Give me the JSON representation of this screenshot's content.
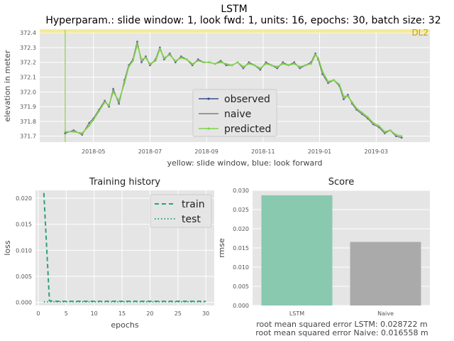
{
  "figure": {
    "title": "LSTM",
    "subtitle": "Hyperparam.: slide window: 1, look fwd: 1, units: 16, epochs: 30, batch size: 32"
  },
  "colors": {
    "panel_bg": "#e5e5e5",
    "grid": "#ffffff",
    "observed": "#3b4d8f",
    "naive": "#7f7f7f",
    "predicted": "#7ed348",
    "highlight": "#f5ec8a",
    "highlight_label": "#c8a000",
    "window_line": "#9fd36b",
    "train": "#2ca07a",
    "test": "#2ca07a",
    "bar_lstm": "#88c9b0",
    "bar_naive": "#aaaaaa"
  },
  "chart_data": [
    {
      "type": "line",
      "title": "",
      "xlabel": "yellow: slide window, blue: look forward",
      "ylabel": "elevation in meter",
      "x_ticks": [
        "2018-05",
        "2018-07",
        "2018-09",
        "2018-11",
        "2019-01",
        "2019-03"
      ],
      "x_tick_pos": [
        1.0,
        3.0,
        5.0,
        7.0,
        9.0,
        11.0
      ],
      "y_ticks": [
        "371.7",
        "371.8",
        "371.9",
        "372.0",
        "372.1",
        "372.2",
        "372.3",
        "372.4"
      ],
      "ylim": [
        371.66,
        372.42
      ],
      "xlim": [
        -0.9,
        12.9
      ],
      "annotation": "DL2",
      "highlight_y": 372.41,
      "window_x": 0.0,
      "legend": {
        "position": "center-right",
        "entries": [
          "observed",
          "naive",
          "predicted"
        ]
      },
      "x": [
        0.0,
        0.3,
        0.6,
        0.85,
        1.0,
        1.2,
        1.4,
        1.55,
        1.7,
        1.9,
        2.1,
        2.25,
        2.4,
        2.55,
        2.7,
        2.85,
        3.0,
        3.2,
        3.35,
        3.5,
        3.7,
        3.9,
        4.1,
        4.3,
        4.5,
        4.7,
        4.9,
        5.1,
        5.3,
        5.5,
        5.7,
        5.9,
        6.1,
        6.3,
        6.5,
        6.7,
        6.9,
        7.1,
        7.3,
        7.5,
        7.7,
        7.9,
        8.1,
        8.3,
        8.5,
        8.7,
        8.85,
        8.95,
        9.1,
        9.3,
        9.5,
        9.7,
        9.85,
        10.0,
        10.15,
        10.3,
        10.5,
        10.7,
        10.9,
        11.1,
        11.3,
        11.5,
        11.7,
        11.9
      ],
      "series": [
        {
          "name": "observed",
          "values": [
            371.72,
            371.74,
            371.71,
            371.79,
            371.82,
            371.88,
            371.94,
            371.9,
            372.02,
            371.92,
            372.08,
            372.18,
            372.22,
            372.34,
            372.2,
            372.24,
            372.18,
            372.22,
            372.3,
            372.22,
            372.26,
            372.2,
            372.24,
            372.22,
            372.18,
            372.22,
            372.2,
            372.2,
            372.19,
            372.21,
            372.18,
            372.18,
            372.2,
            372.16,
            372.2,
            372.18,
            372.15,
            372.2,
            372.18,
            372.16,
            372.2,
            372.18,
            372.2,
            372.16,
            372.18,
            372.2,
            372.26,
            372.22,
            372.12,
            372.06,
            372.08,
            372.04,
            371.95,
            371.98,
            371.92,
            371.88,
            371.85,
            371.82,
            371.78,
            371.76,
            371.72,
            371.74,
            371.7,
            371.69
          ]
        },
        {
          "name": "naive",
          "values": [
            371.72,
            371.74,
            371.71,
            371.79,
            371.82,
            371.88,
            371.94,
            371.9,
            372.02,
            371.92,
            372.08,
            372.18,
            372.22,
            372.34,
            372.2,
            372.24,
            372.18,
            372.22,
            372.3,
            372.22,
            372.26,
            372.2,
            372.24,
            372.22,
            372.18,
            372.22,
            372.2,
            372.2,
            372.19,
            372.21,
            372.18,
            372.18,
            372.2,
            372.16,
            372.2,
            372.18,
            372.15,
            372.2,
            372.18,
            372.16,
            372.2,
            372.18,
            372.2,
            372.16,
            372.18,
            372.2,
            372.26,
            372.22,
            372.12,
            372.06,
            372.08,
            372.04,
            371.95,
            371.98,
            371.92,
            371.88,
            371.85,
            371.82,
            371.78,
            371.76,
            371.72,
            371.74,
            371.7,
            371.69
          ]
        },
        {
          "name": "predicted",
          "values": [
            371.73,
            371.73,
            371.72,
            371.77,
            371.81,
            371.87,
            371.93,
            371.91,
            372.0,
            371.94,
            372.06,
            372.17,
            372.21,
            372.32,
            372.22,
            372.23,
            372.19,
            372.21,
            372.29,
            372.23,
            372.25,
            372.21,
            372.23,
            372.22,
            372.19,
            372.21,
            372.2,
            372.2,
            372.19,
            372.2,
            372.19,
            372.18,
            372.2,
            372.17,
            372.19,
            372.18,
            372.16,
            372.19,
            372.18,
            372.17,
            372.19,
            372.18,
            372.19,
            372.17,
            372.18,
            372.19,
            372.25,
            372.23,
            372.14,
            372.07,
            372.08,
            372.05,
            371.97,
            371.97,
            371.93,
            371.89,
            371.86,
            371.83,
            371.79,
            371.77,
            371.73,
            371.74,
            371.71,
            371.7
          ]
        }
      ]
    },
    {
      "type": "line",
      "title": "Training history",
      "xlabel": "epochs",
      "ylabel": "loss",
      "x_ticks": [
        "0",
        "5",
        "10",
        "15",
        "20",
        "25",
        "30"
      ],
      "y_ticks": [
        "0.000",
        "0.005",
        "0.010",
        "0.015",
        "0.020"
      ],
      "xlim": [
        -0.5,
        31.5
      ],
      "ylim": [
        -0.0006,
        0.0215
      ],
      "legend": {
        "position": "top-right",
        "entries": [
          "train",
          "test"
        ]
      },
      "series": [
        {
          "name": "train",
          "style": "dashed",
          "x": [
            1,
            2,
            3,
            4,
            5,
            6,
            7,
            8,
            9,
            10,
            11,
            12,
            13,
            14,
            15,
            16,
            17,
            18,
            19,
            20,
            21,
            22,
            23,
            24,
            25,
            26,
            27,
            28,
            29,
            30
          ],
          "values": [
            0.021,
            0.0003,
            0.0002,
            0.0002,
            0.0002,
            0.0002,
            0.0002,
            0.0002,
            0.0002,
            0.0002,
            0.0002,
            0.0002,
            0.0002,
            0.0002,
            0.0002,
            0.0002,
            0.0002,
            0.0002,
            0.0002,
            0.0002,
            0.0002,
            0.0002,
            0.0002,
            0.0002,
            0.0002,
            0.0002,
            0.0002,
            0.0002,
            0.0002,
            0.0002
          ]
        },
        {
          "name": "test",
          "style": "dotted",
          "x": [
            1,
            2,
            3,
            4,
            5,
            6,
            7,
            8,
            9,
            10,
            11,
            12,
            13,
            14,
            15,
            16,
            17,
            18,
            19,
            20,
            21,
            22,
            23,
            24,
            25,
            26,
            27,
            28,
            29,
            30
          ],
          "values": [
            0.0001,
            0.0001,
            0.0001,
            0.0001,
            0.0001,
            0.0001,
            0.0001,
            0.0001,
            0.0001,
            0.0001,
            0.0001,
            0.0001,
            0.0001,
            0.0001,
            0.0001,
            0.0001,
            0.0001,
            0.0001,
            0.0001,
            0.0001,
            0.0001,
            0.0001,
            0.0001,
            0.0001,
            0.0001,
            0.0001,
            0.0001,
            0.0001,
            0.0001,
            0.0001
          ]
        }
      ]
    },
    {
      "type": "bar",
      "title": "Score",
      "xlabel": "",
      "ylabel": "rmse",
      "categories": [
        "LSTM",
        "Naive"
      ],
      "values": [
        0.028722,
        0.016558
      ],
      "y_ticks": [
        "0.000",
        "0.005",
        "0.010",
        "0.015",
        "0.020",
        "0.025",
        "0.030"
      ],
      "ylim": [
        0,
        0.03
      ],
      "caption_lines": [
        "root mean squared error LSTM: 0.028722 m",
        "root mean squared error Naive: 0.016558 m"
      ]
    }
  ]
}
